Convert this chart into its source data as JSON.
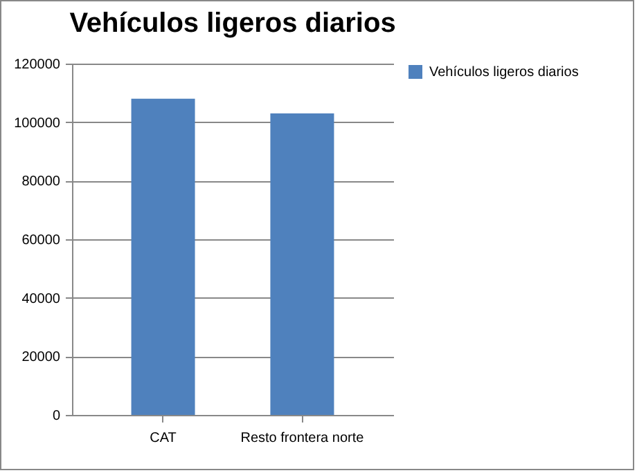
{
  "chart_data": {
    "type": "bar",
    "title": "Vehículos ligeros diarios",
    "categories": [
      "CAT",
      "Resto frontera norte"
    ],
    "series": [
      {
        "name": "Vehículos ligeros diarios",
        "color": "#4f81bd",
        "values": [
          108000,
          103000
        ]
      }
    ],
    "ylim": [
      0,
      120000
    ],
    "yticks": [
      0,
      20000,
      40000,
      60000,
      80000,
      100000,
      120000
    ],
    "grid": "y",
    "legend": "right"
  }
}
